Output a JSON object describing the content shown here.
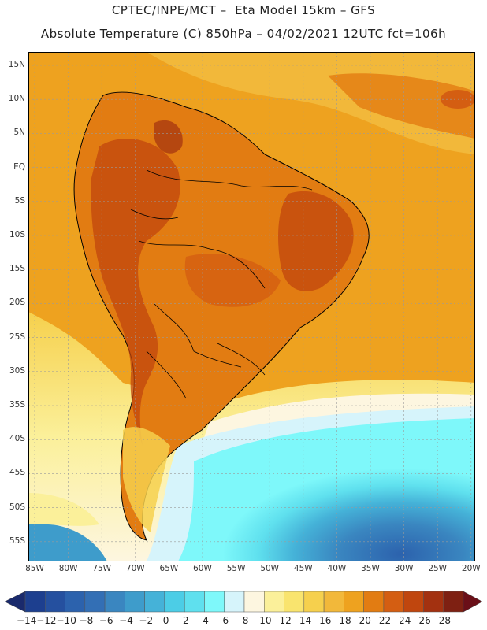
{
  "header": {
    "line1": "CPTEC/INPE/MCT –  Eta Model 15km – GFS",
    "line2": "Absolute Temperature (C) 850hPa – 04/02/2021 12UTC fct=106h"
  },
  "map": {
    "lat_labels": [
      "15N",
      "10N",
      "5N",
      "EQ",
      "5S",
      "10S",
      "15S",
      "20S",
      "25S",
      "30S",
      "35S",
      "40S",
      "45S",
      "50S",
      "55S"
    ],
    "lon_labels": [
      "85W",
      "80W",
      "75W",
      "70W",
      "65W",
      "60W",
      "55W",
      "50W",
      "45W",
      "40W",
      "35W",
      "30W",
      "25W",
      "20W"
    ]
  },
  "colorbar": {
    "labels": [
      "−14",
      "−12",
      "−10",
      "−8",
      "−6",
      "−4",
      "−2",
      "0",
      "2",
      "4",
      "6",
      "8",
      "10",
      "12",
      "14",
      "16",
      "18",
      "20",
      "22",
      "24",
      "26",
      "28"
    ],
    "colors": [
      "#1d3f8f",
      "#25509f",
      "#2c62ad",
      "#336fb5",
      "#3a86c0",
      "#3e9ccb",
      "#45b2d8",
      "#4ccde6",
      "#5fe0ee",
      "#7ef8fa",
      "#d6f4fb",
      "#fdf6e0",
      "#fbf09a",
      "#f9e46e",
      "#f6d04d",
      "#f2b83a",
      "#eea21f",
      "#e27c12",
      "#d45e12",
      "#c0460e",
      "#a33110",
      "#7e2012"
    ],
    "left_arrow_color": "#1a2a6c",
    "right_arrow_color": "#6a0f18"
  }
}
